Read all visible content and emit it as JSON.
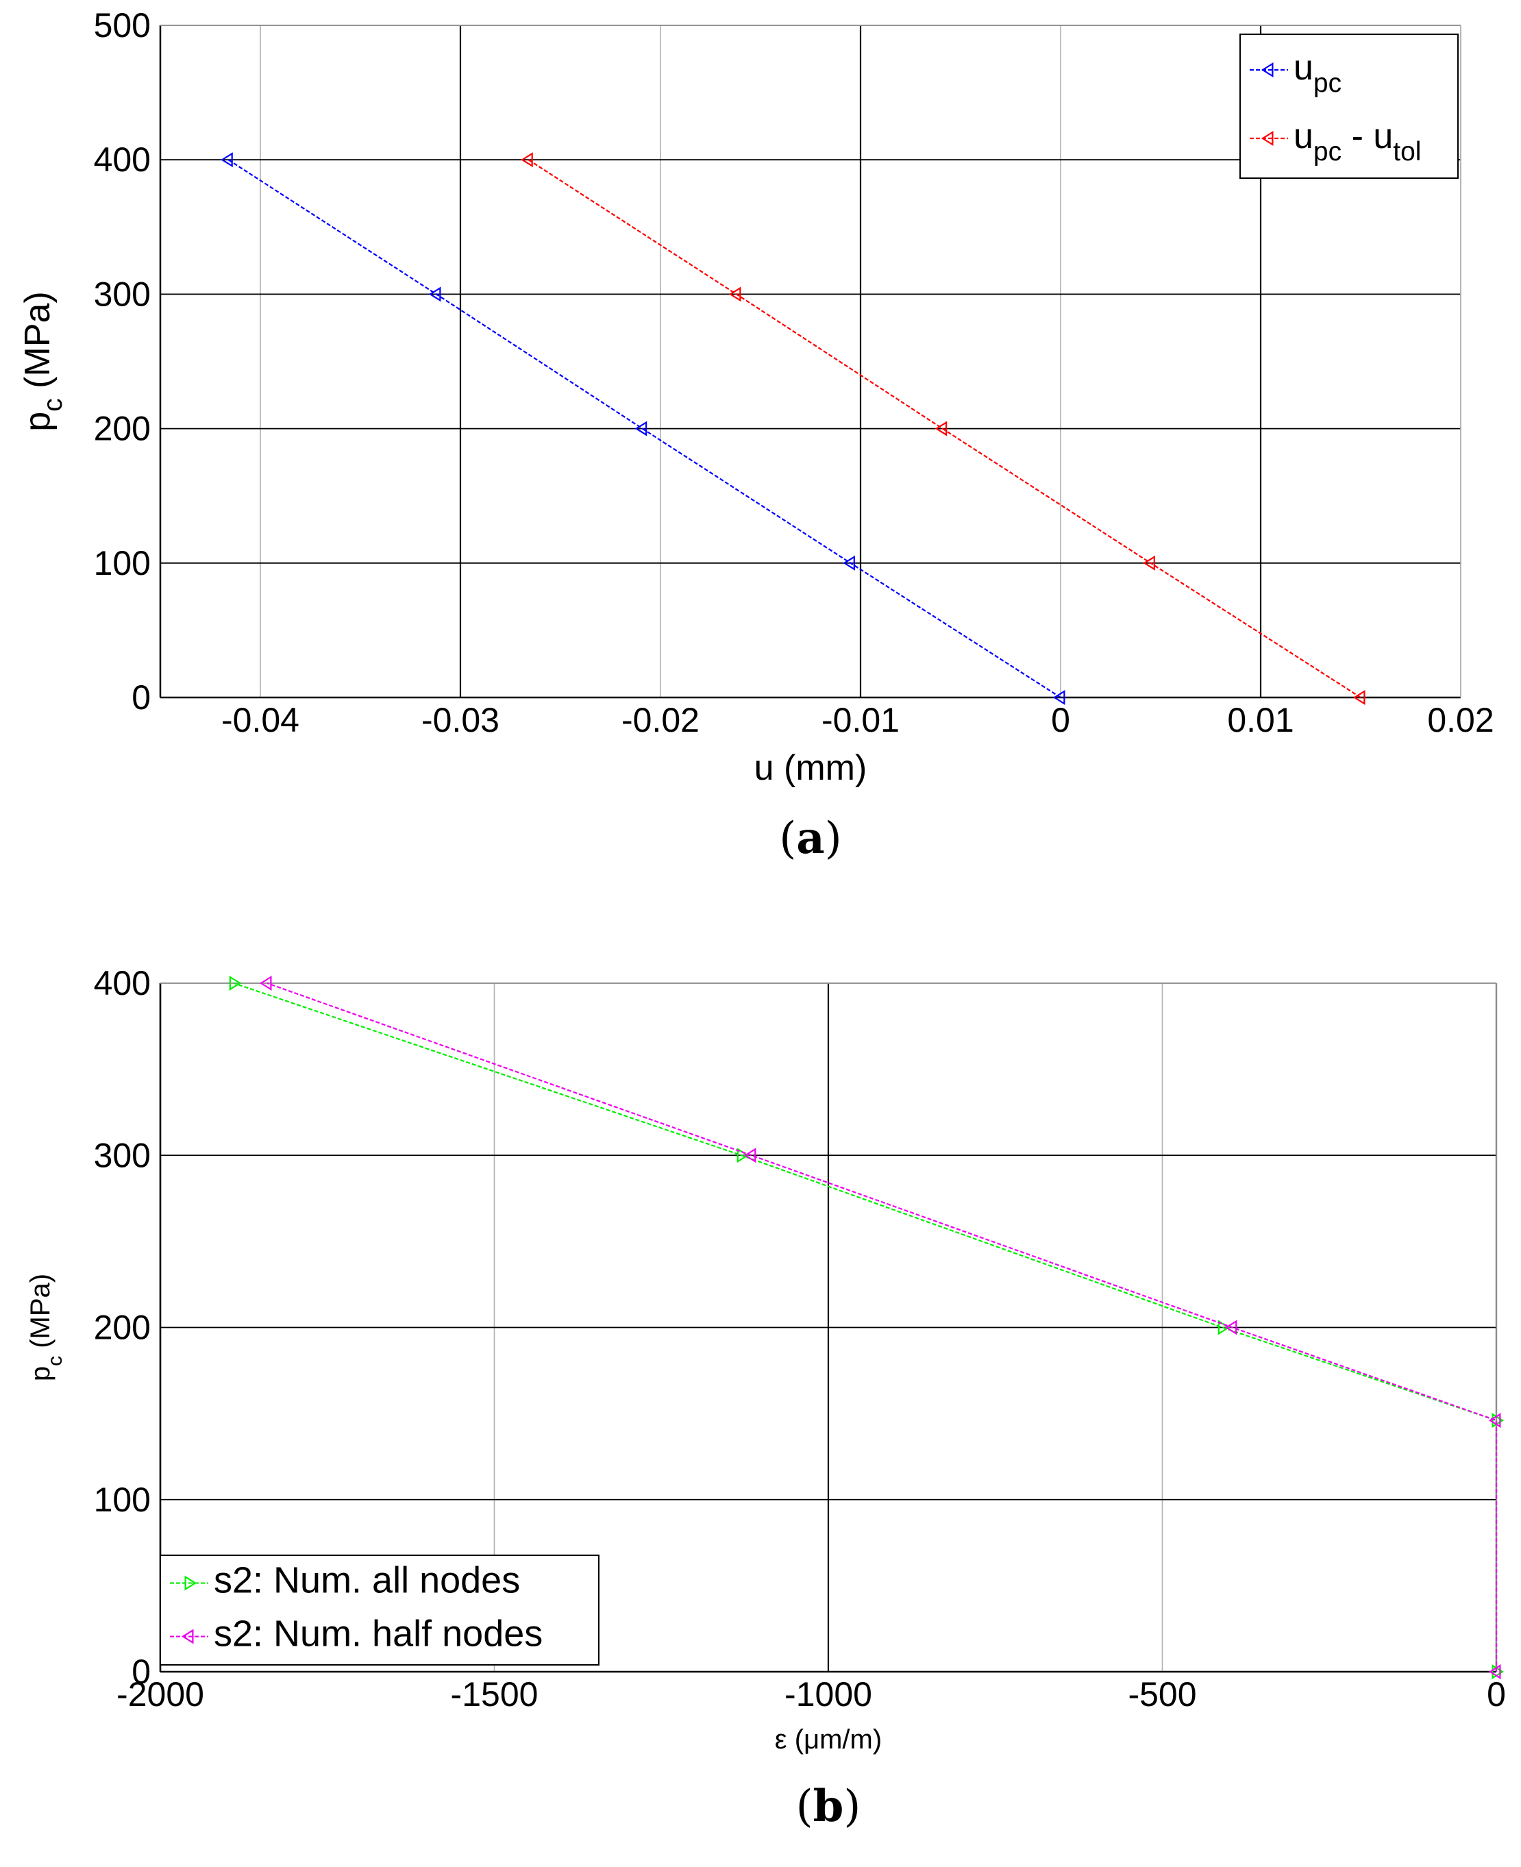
{
  "chart_data": [
    {
      "type": "line",
      "panel_label": "a",
      "xlabel": "u (mm)",
      "ylabel_main": "p",
      "ylabel_sub": "c",
      "ylabel_rest": " (MPa)",
      "xlim": [
        -0.045,
        0.02
      ],
      "ylim": [
        0,
        500
      ],
      "xticks": [
        -0.04,
        -0.03,
        -0.02,
        -0.01,
        0,
        0.01,
        0.02
      ],
      "xtick_labels": [
        "-0.04",
        "-0.03",
        "-0.02",
        "-0.01",
        "0",
        "0.01",
        "0.02"
      ],
      "yticks": [
        0,
        100,
        200,
        300,
        400,
        500
      ],
      "ytick_labels": [
        "0",
        "100",
        "200",
        "300",
        "400",
        "500"
      ],
      "grid": true,
      "legend_position": "top-right",
      "series": [
        {
          "name_main": "u",
          "name_sub": "pc",
          "name_rest": "",
          "name_sub2": "",
          "color": "#0000ff",
          "marker": "triangle-left",
          "x": [
            0,
            -0.0105,
            -0.0209,
            -0.0312,
            -0.0416
          ],
          "y": [
            0,
            100,
            200,
            300,
            400
          ]
        },
        {
          "name_main": "u",
          "name_sub": "pc",
          "name_rest": " - u",
          "name_sub2": "tol",
          "color": "#ff0000",
          "marker": "triangle-left",
          "x": [
            0.015,
            0.0045,
            -0.0059,
            -0.0162,
            -0.0266
          ],
          "y": [
            0,
            100,
            200,
            300,
            400
          ]
        }
      ]
    },
    {
      "type": "line",
      "panel_label": "b",
      "xlabel": "ε (μm/m)",
      "ylabel_main": "p",
      "ylabel_sub": "c",
      "ylabel_rest": " (MPa)",
      "xlim": [
        -2000,
        0
      ],
      "ylim": [
        0,
        400
      ],
      "xticks": [
        -2000,
        -1500,
        -1000,
        -500,
        0
      ],
      "xtick_labels": [
        "-2000",
        "-1500",
        "-1000",
        "-500",
        "0"
      ],
      "yticks": [
        0,
        100,
        200,
        300,
        400
      ],
      "ytick_labels": [
        "0",
        "100",
        "200",
        "300",
        "400"
      ],
      "grid": true,
      "legend_position": "bottom-left",
      "series": [
        {
          "name_main": "s2: Num. all nodes",
          "color": "#00ee00",
          "marker": "triangle-right",
          "x": [
            0,
            0,
            -410,
            -1130,
            -1890
          ],
          "y": [
            0,
            146,
            200,
            300,
            400
          ]
        },
        {
          "name_main": "s2: Num. half nodes",
          "color": "#ee00ee",
          "marker": "triangle-left",
          "x": [
            0,
            0,
            -395,
            -1115,
            -1840
          ],
          "y": [
            0,
            146,
            200,
            300,
            400
          ]
        }
      ]
    }
  ]
}
